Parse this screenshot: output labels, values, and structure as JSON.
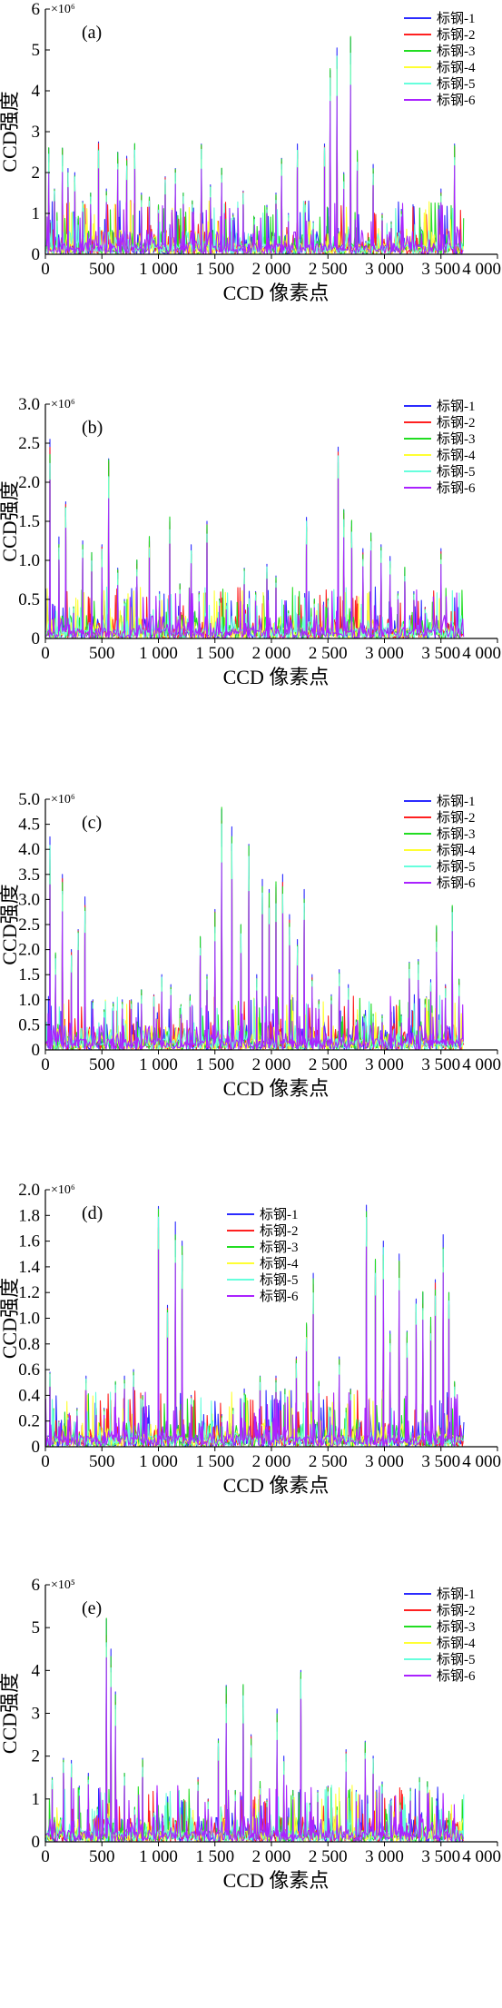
{
  "chart_data": [
    {
      "type": "line",
      "panel": "(a)",
      "multiplier": "×10⁶",
      "xlabel": "CCD 像素点",
      "ylabel": "CCD强度",
      "xlim": [
        0,
        4000
      ],
      "ylim": [
        0,
        6
      ],
      "x_ticks": [
        "0",
        "500",
        "1 000",
        "1 500",
        "2 000",
        "2 500",
        "3 000",
        "3 500",
        "4 000"
      ],
      "y_ticks": [
        "0",
        "1",
        "2",
        "3",
        "4",
        "5",
        "6"
      ],
      "legend": "top-right",
      "series": [
        {
          "name": "标钢-1",
          "color": "#2b2bff"
        },
        {
          "name": "标钢-2",
          "color": "#ff2020"
        },
        {
          "name": "标钢-3",
          "color": "#22dd22"
        },
        {
          "name": "标钢-4",
          "color": "#ffff33"
        },
        {
          "name": "标钢-5",
          "color": "#66ffdd"
        },
        {
          "name": "标钢-6",
          "color": "#aa22ff"
        }
      ],
      "peaks": [
        [
          30,
          2.6
        ],
        [
          80,
          1.6
        ],
        [
          150,
          2.6
        ],
        [
          200,
          2.1
        ],
        [
          260,
          2.0
        ],
        [
          330,
          1.3
        ],
        [
          400,
          1.5
        ],
        [
          470,
          2.75
        ],
        [
          540,
          1.6
        ],
        [
          640,
          2.5
        ],
        [
          720,
          2.4
        ],
        [
          790,
          2.7
        ],
        [
          850,
          1.5
        ],
        [
          920,
          1.4
        ],
        [
          1000,
          1.2
        ],
        [
          1060,
          1.9
        ],
        [
          1150,
          2.1
        ],
        [
          1220,
          1.5
        ],
        [
          1300,
          1.3
        ],
        [
          1380,
          2.7
        ],
        [
          1460,
          1.7
        ],
        [
          1560,
          2.1
        ],
        [
          1660,
          1.0
        ],
        [
          1750,
          1.55
        ],
        [
          1850,
          0.9
        ],
        [
          1960,
          1.2
        ],
        [
          2040,
          1.5
        ],
        [
          2090,
          2.35
        ],
        [
          2150,
          1.0
        ],
        [
          2230,
          2.7
        ],
        [
          2300,
          1.3
        ],
        [
          2370,
          0.8
        ],
        [
          2470,
          2.7
        ],
        [
          2520,
          4.5
        ],
        [
          2580,
          5.05
        ],
        [
          2640,
          2.0
        ],
        [
          2700,
          5.3
        ],
        [
          2760,
          2.5
        ],
        [
          2900,
          2.2
        ],
        [
          2980,
          1.0
        ],
        [
          3060,
          0.8
        ],
        [
          3150,
          1.1
        ],
        [
          3330,
          0.6
        ],
        [
          3500,
          1.6
        ],
        [
          3620,
          2.7
        ]
      ]
    },
    {
      "type": "line",
      "panel": "(b)",
      "multiplier": "×10⁶",
      "xlabel": "CCD 像素点",
      "ylabel": "CCD强度",
      "xlim": [
        0,
        4000
      ],
      "ylim": [
        0,
        3.0
      ],
      "x_ticks": [
        "0",
        "500",
        "1 000",
        "1 500",
        "2 000",
        "2 500",
        "3 000",
        "3 500",
        "4 000"
      ],
      "y_ticks": [
        "0",
        "0.5",
        "1.0",
        "1.5",
        "2.0",
        "2.5",
        "3.0"
      ],
      "legend": "top-right",
      "series": [
        {
          "name": "标钢-1",
          "color": "#2b2bff"
        },
        {
          "name": "标钢-2",
          "color": "#ff2020"
        },
        {
          "name": "标钢-3",
          "color": "#22dd22"
        },
        {
          "name": "标钢-4",
          "color": "#ffff33"
        },
        {
          "name": "标钢-5",
          "color": "#66ffdd"
        },
        {
          "name": "标钢-6",
          "color": "#aa22ff"
        }
      ],
      "peaks": [
        [
          40,
          2.55
        ],
        [
          120,
          1.3
        ],
        [
          180,
          1.75
        ],
        [
          250,
          0.4
        ],
        [
          330,
          1.25
        ],
        [
          410,
          1.1
        ],
        [
          500,
          1.2
        ],
        [
          560,
          2.3
        ],
        [
          640,
          0.9
        ],
        [
          700,
          0.5
        ],
        [
          810,
          1.0
        ],
        [
          920,
          1.3
        ],
        [
          1010,
          0.6
        ],
        [
          1100,
          1.55
        ],
        [
          1190,
          0.7
        ],
        [
          1290,
          1.2
        ],
        [
          1360,
          0.6
        ],
        [
          1430,
          1.5
        ],
        [
          1540,
          0.5
        ],
        [
          1600,
          0.45
        ],
        [
          1760,
          0.9
        ],
        [
          1860,
          0.6
        ],
        [
          1960,
          0.95
        ],
        [
          2040,
          0.8
        ],
        [
          2150,
          0.35
        ],
        [
          2310,
          1.55
        ],
        [
          2380,
          0.5
        ],
        [
          2500,
          0.5
        ],
        [
          2590,
          2.45
        ],
        [
          2640,
          1.65
        ],
        [
          2710,
          1.5
        ],
        [
          2810,
          1.15
        ],
        [
          2880,
          1.35
        ],
        [
          2970,
          1.2
        ],
        [
          3050,
          1.05
        ],
        [
          3120,
          0.6
        ],
        [
          3180,
          0.9
        ],
        [
          3260,
          0.6
        ],
        [
          3360,
          0.4
        ],
        [
          3500,
          1.15
        ],
        [
          3610,
          0.2
        ]
      ]
    },
    {
      "type": "line",
      "panel": "(c)",
      "multiplier": "×10⁶",
      "xlabel": "CCD 像素点",
      "ylabel": "CCD强度",
      "xlim": [
        0,
        4000
      ],
      "ylim": [
        0,
        5.0
      ],
      "x_ticks": [
        "0",
        "500",
        "1 000",
        "1 500",
        "2 000",
        "2 500",
        "3 000",
        "3 500",
        "4 000"
      ],
      "y_ticks": [
        "0",
        "0.5",
        "1.0",
        "1.5",
        "2.0",
        "2.5",
        "3.0",
        "3.5",
        "4.0",
        "4.5",
        "5.0"
      ],
      "legend": "top-right",
      "series": [
        {
          "name": "标钢-1",
          "color": "#2b2bff"
        },
        {
          "name": "标钢-2",
          "color": "#ff2020"
        },
        {
          "name": "标钢-3",
          "color": "#22dd22"
        },
        {
          "name": "标钢-4",
          "color": "#ffff33"
        },
        {
          "name": "标钢-5",
          "color": "#66ffdd"
        },
        {
          "name": "标钢-6",
          "color": "#aa22ff"
        }
      ],
      "peaks": [
        [
          40,
          4.25
        ],
        [
          90,
          1.9
        ],
        [
          150,
          3.5
        ],
        [
          230,
          2.0
        ],
        [
          290,
          2.4
        ],
        [
          350,
          3.05
        ],
        [
          420,
          1.0
        ],
        [
          520,
          0.8
        ],
        [
          600,
          0.95
        ],
        [
          680,
          1.0
        ],
        [
          760,
          1.0
        ],
        [
          850,
          1.2
        ],
        [
          960,
          1.1
        ],
        [
          1030,
          1.5
        ],
        [
          1110,
          1.3
        ],
        [
          1200,
          0.9
        ],
        [
          1280,
          1.1
        ],
        [
          1370,
          2.25
        ],
        [
          1430,
          1.5
        ],
        [
          1500,
          2.8
        ],
        [
          1560,
          4.8
        ],
        [
          1650,
          4.45
        ],
        [
          1730,
          2.5
        ],
        [
          1800,
          4.1
        ],
        [
          1870,
          1.5
        ],
        [
          1920,
          3.4
        ],
        [
          1980,
          3.2
        ],
        [
          2040,
          3.3
        ],
        [
          2100,
          3.5
        ],
        [
          2160,
          2.7
        ],
        [
          2230,
          2.2
        ],
        [
          2290,
          3.2
        ],
        [
          2360,
          1.5
        ],
        [
          2420,
          1.0
        ],
        [
          2530,
          1.1
        ],
        [
          2600,
          1.6
        ],
        [
          2680,
          1.3
        ],
        [
          2750,
          0.6
        ],
        [
          2820,
          0.7
        ],
        [
          2900,
          0.7
        ],
        [
          2980,
          0.7
        ],
        [
          3060,
          0.75
        ],
        [
          3150,
          0.7
        ],
        [
          3220,
          1.75
        ],
        [
          3300,
          1.8
        ],
        [
          3360,
          1.0
        ],
        [
          3410,
          1.4
        ],
        [
          3460,
          2.45
        ],
        [
          3540,
          1.3
        ],
        [
          3600,
          2.85
        ],
        [
          3660,
          1.4
        ]
      ]
    },
    {
      "type": "line",
      "panel": "(d)",
      "multiplier": "×10⁶",
      "xlabel": "CCD 像素点",
      "ylabel": "CCD强度",
      "xlim": [
        0,
        4000
      ],
      "ylim": [
        0,
        2.0
      ],
      "x_ticks": [
        "0",
        "500",
        "1 000",
        "1 500",
        "2 000",
        "2 500",
        "3 000",
        "3 500",
        "4 000"
      ],
      "y_ticks": [
        "0",
        "0.2",
        "0.4",
        "0.6",
        "0.8",
        "1.0",
        "1.2",
        "1.4",
        "1.6",
        "1.8",
        "2.0"
      ],
      "legend": "upper-middle",
      "series": [
        {
          "name": "标钢-1",
          "color": "#2b2bff"
        },
        {
          "name": "标钢-2",
          "color": "#ff2020"
        },
        {
          "name": "标钢-3",
          "color": "#22dd22"
        },
        {
          "name": "标钢-4",
          "color": "#ffff33"
        },
        {
          "name": "标钢-5",
          "color": "#66ffdd"
        },
        {
          "name": "标钢-6",
          "color": "#aa22ff"
        }
      ],
      "peaks": [
        [
          40,
          0.58
        ],
        [
          120,
          0.2
        ],
        [
          200,
          0.25
        ],
        [
          280,
          0.3
        ],
        [
          360,
          0.55
        ],
        [
          450,
          0.3
        ],
        [
          520,
          0.3
        ],
        [
          620,
          0.5
        ],
        [
          700,
          0.55
        ],
        [
          780,
          0.6
        ],
        [
          860,
          0.4
        ],
        [
          1000,
          1.87
        ],
        [
          1080,
          1.1
        ],
        [
          1150,
          1.75
        ],
        [
          1210,
          1.6
        ],
        [
          1290,
          0.4
        ],
        [
          1380,
          0.2
        ],
        [
          1480,
          0.2
        ],
        [
          1560,
          0.25
        ],
        [
          1660,
          0.3
        ],
        [
          1760,
          0.45
        ],
        [
          1900,
          0.55
        ],
        [
          2040,
          0.55
        ],
        [
          2120,
          0.45
        ],
        [
          2220,
          0.7
        ],
        [
          2310,
          0.95
        ],
        [
          2370,
          1.35
        ],
        [
          2420,
          0.5
        ],
        [
          2520,
          0.3
        ],
        [
          2600,
          0.7
        ],
        [
          2700,
          0.45
        ],
        [
          2840,
          1.88
        ],
        [
          2920,
          1.45
        ],
        [
          2990,
          1.6
        ],
        [
          3050,
          0.9
        ],
        [
          3130,
          1.5
        ],
        [
          3200,
          0.9
        ],
        [
          3280,
          1.15
        ],
        [
          3340,
          1.2
        ],
        [
          3410,
          1.0
        ],
        [
          3450,
          1.3
        ],
        [
          3520,
          1.65
        ],
        [
          3570,
          1.2
        ],
        [
          3620,
          0.5
        ]
      ]
    },
    {
      "type": "line",
      "panel": "(e)",
      "multiplier": "×10⁵",
      "xlabel": "CCD 像素点",
      "ylabel": "CCD强度",
      "xlim": [
        0,
        4000
      ],
      "ylim": [
        0,
        6
      ],
      "x_ticks": [
        "0",
        "500",
        "1 000",
        "1 500",
        "2 000",
        "2 500",
        "3 000",
        "3 500",
        "4 000"
      ],
      "y_ticks": [
        "0",
        "1",
        "2",
        "3",
        "4",
        "5",
        "6"
      ],
      "legend": "top-right",
      "series": [
        {
          "name": "标钢-1",
          "color": "#2b2bff"
        },
        {
          "name": "标钢-2",
          "color": "#ff2020"
        },
        {
          "name": "标钢-3",
          "color": "#22dd22"
        },
        {
          "name": "标钢-4",
          "color": "#ffff33"
        },
        {
          "name": "标钢-5",
          "color": "#66ffdd"
        },
        {
          "name": "标钢-6",
          "color": "#aa22ff"
        }
      ],
      "peaks": [
        [
          60,
          1.5
        ],
        [
          160,
          1.95
        ],
        [
          230,
          1.9
        ],
        [
          300,
          1.3
        ],
        [
          380,
          1.6
        ],
        [
          460,
          0.8
        ],
        [
          540,
          5.2
        ],
        [
          580,
          4.5
        ],
        [
          620,
          3.5
        ],
        [
          700,
          1.6
        ],
        [
          790,
          0.8
        ],
        [
          860,
          1.95
        ],
        [
          960,
          0.7
        ],
        [
          1040,
          0.6
        ],
        [
          1150,
          0.5
        ],
        [
          1250,
          0.6
        ],
        [
          1350,
          1.5
        ],
        [
          1440,
          1.0
        ],
        [
          1530,
          2.4
        ],
        [
          1600,
          3.65
        ],
        [
          1680,
          1.2
        ],
        [
          1750,
          3.65
        ],
        [
          1820,
          2.5
        ],
        [
          1900,
          1.4
        ],
        [
          1960,
          1.0
        ],
        [
          2050,
          3.1
        ],
        [
          2110,
          2.0
        ],
        [
          2190,
          1.2
        ],
        [
          2260,
          4.0
        ],
        [
          2340,
          0.9
        ],
        [
          2410,
          1.2
        ],
        [
          2500,
          1.3
        ],
        [
          2580,
          0.8
        ],
        [
          2660,
          2.15
        ],
        [
          2750,
          1.2
        ],
        [
          2830,
          2.35
        ],
        [
          2900,
          2.0
        ],
        [
          2980,
          1.4
        ],
        [
          3060,
          1.0
        ],
        [
          3140,
          0.9
        ],
        [
          3230,
          1.25
        ],
        [
          3310,
          1.5
        ],
        [
          3380,
          1.4
        ],
        [
          3460,
          1.0
        ],
        [
          3560,
          0.5
        ]
      ]
    }
  ]
}
